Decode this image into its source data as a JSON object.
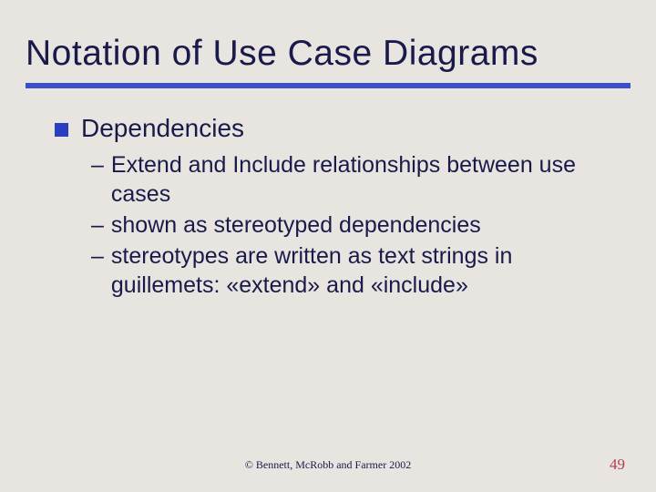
{
  "slide": {
    "title": "Notation of Use Case Diagrams",
    "title_color": "#1a1a4a",
    "title_fontsize": 39,
    "underline_color": "#3a4fd0",
    "underline_height": 6,
    "background_color": "#e8e4e0",
    "bullet": {
      "marker_color": "#2a3fc0",
      "marker_size": 15,
      "text": "Dependencies",
      "text_fontsize": 28,
      "text_color": "#1a1a4a"
    },
    "sub_items": [
      "Extend and Include relationships between use cases",
      "shown as stereotyped dependencies",
      "stereotypes are written as text strings in guillemets: «extend» and «include»"
    ],
    "sub_fontsize": 25,
    "sub_color": "#1a1a4a",
    "footer": "©  Bennett, McRobb and Farmer 2002",
    "footer_fontsize": 12,
    "page_number": "49",
    "page_number_color": "#b04050",
    "page_number_fontsize": 17
  }
}
